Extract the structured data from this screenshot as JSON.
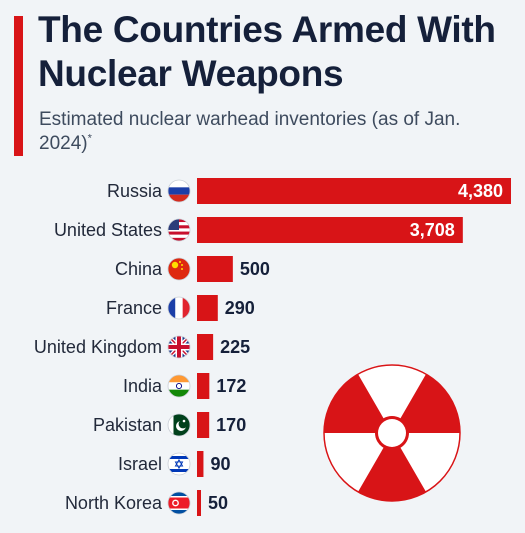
{
  "header": {
    "title": "The Countries Armed With Nuclear Weapons",
    "subtitle": "Estimated nuclear warhead inventories (as of Jan. 2024)",
    "footnote_mark": "*"
  },
  "colors": {
    "accent": "#d81417",
    "bar": "#d81417",
    "background": "#f1f4f7",
    "title": "#15203a"
  },
  "decoration": {
    "icon": "radiation-trefoil-icon"
  },
  "chart_data": {
    "type": "bar",
    "orientation": "horizontal",
    "categories": [
      "Russia",
      "United States",
      "China",
      "France",
      "United Kingdom",
      "India",
      "Pakistan",
      "Israel",
      "North Korea"
    ],
    "values": [
      4380,
      3708,
      500,
      290,
      225,
      172,
      170,
      90,
      50
    ],
    "value_labels": [
      "4,380",
      "3,708",
      "500",
      "290",
      "225",
      "172",
      "170",
      "90",
      "50"
    ],
    "flags": [
      "russia-flag-icon",
      "usa-flag-icon",
      "china-flag-icon",
      "france-flag-icon",
      "uk-flag-icon",
      "india-flag-icon",
      "pakistan-flag-icon",
      "israel-flag-icon",
      "north-korea-flag-icon"
    ],
    "xlim": [
      0,
      4380
    ],
    "grid": false,
    "legend": "none"
  }
}
